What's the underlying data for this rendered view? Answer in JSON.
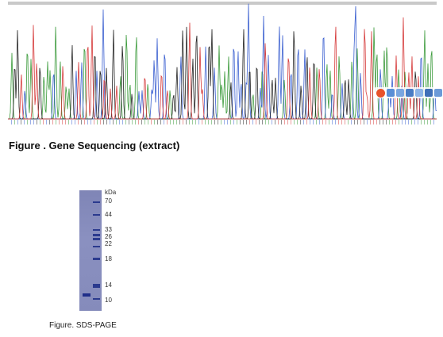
{
  "figures": {
    "sequencing": {
      "caption": "Figure . Gene Sequencing (extract)"
    },
    "sds_page": {
      "caption": "Figure. SDS-PAGE",
      "unit_label": "kDa",
      "markers": [
        "70",
        "44",
        "33",
        "26",
        "22",
        "18",
        "14",
        "10"
      ]
    }
  },
  "colors": {
    "trace_A": "#3a9a3a",
    "trace_C": "#3a5fd0",
    "trace_G": "#222222",
    "trace_T": "#d63a3a",
    "gel": "#868cbc",
    "marker_band": "#2b3a8e"
  },
  "icons": [
    "nav-icon",
    "arrow-icon",
    "link-icon",
    "search-icon",
    "chart-icon",
    "settings-icon",
    "brush-icon"
  ]
}
